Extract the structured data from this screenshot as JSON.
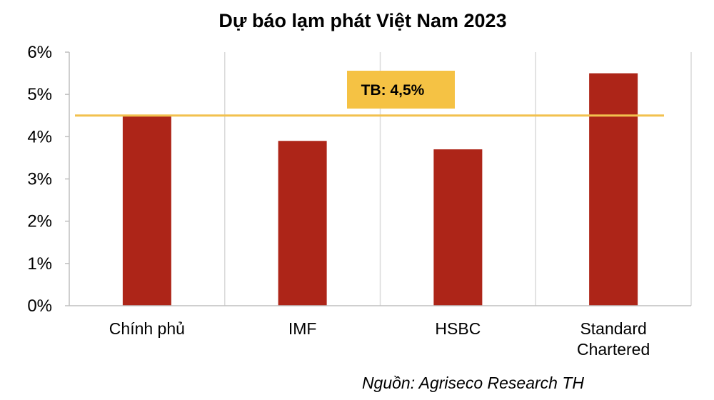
{
  "chart_data": {
    "type": "bar",
    "title": "Dự báo lạm phát Việt Nam 2023",
    "categories": [
      "Chính phủ",
      "IMF",
      "HSBC",
      "Standard Chartered"
    ],
    "category_lines": [
      [
        "Chính phủ"
      ],
      [
        "IMF"
      ],
      [
        "HSBC"
      ],
      [
        "Standard",
        "Chartered"
      ]
    ],
    "values": [
      4.5,
      3.9,
      3.7,
      5.5
    ],
    "unit": "%",
    "ylim": [
      0,
      6
    ],
    "yticks": [
      0,
      1,
      2,
      3,
      4,
      5,
      6
    ],
    "ytick_labels": [
      "0%",
      "1%",
      "2%",
      "3%",
      "4%",
      "5%",
      "6%"
    ],
    "grid": "vertical category separators",
    "average_line": {
      "value": 4.5,
      "label": "TB: 4,5%"
    },
    "source": "Nguồn: Agriseco Research TH"
  },
  "colors": {
    "bar": "#ad2518",
    "average_line": "#f2c14e",
    "average_label_bg": "#f5c244",
    "axis": "#bfbfbf",
    "grid": "#d9d9d9"
  }
}
